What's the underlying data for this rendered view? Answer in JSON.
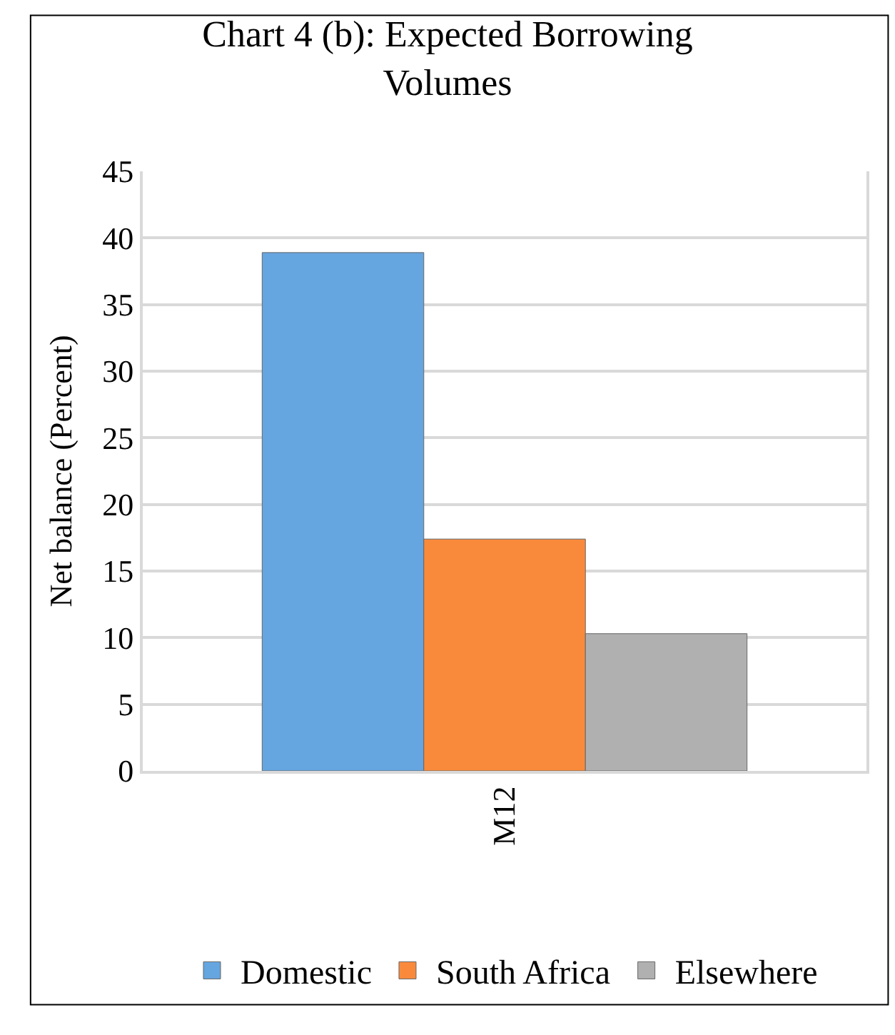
{
  "chart_data": {
    "type": "bar",
    "title": "Chart 4 (b): Expected Borrowing Volumes",
    "ylabel": "Net balance (Percent)",
    "categories": [
      "M12"
    ],
    "series": [
      {
        "name": "Domestic",
        "color": "#65a5e0",
        "values": [
          38.9
        ]
      },
      {
        "name": "South Africa",
        "color": "#f98a3b",
        "values": [
          17.4
        ]
      },
      {
        "name": "Elsewhere",
        "color": "#b0b0b0",
        "values": [
          10.3
        ]
      }
    ],
    "ylim": [
      0,
      45
    ],
    "yticks": [
      0,
      5,
      10,
      15,
      20,
      25,
      30,
      35,
      40,
      45
    ],
    "grid": "y",
    "legend": "bottom"
  }
}
